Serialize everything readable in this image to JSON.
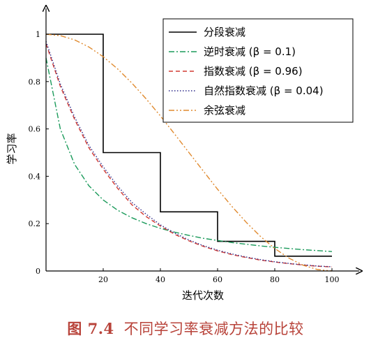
{
  "caption": {
    "prefix": "图 7.4",
    "text": "不同学习率衰减方法的比较"
  },
  "chart_data": {
    "type": "line",
    "xlabel": "迭代次数",
    "ylabel": "学习率",
    "xlim": [
      0,
      100
    ],
    "ylim": [
      0,
      1.1
    ],
    "x_ticks": [
      20,
      40,
      60,
      80,
      100
    ],
    "y_ticks": [
      0,
      0.2,
      0.4,
      0.6,
      0.8,
      1
    ],
    "x_tick_labels": [
      "20",
      "40",
      "60",
      "80",
      "100"
    ],
    "y_tick_labels": [
      "0",
      "0.2",
      "0.4",
      "0.6",
      "0.8",
      "1"
    ],
    "grid": false,
    "legend_position": "top-right",
    "series": [
      {
        "name": "分段衰减",
        "color": "#000000",
        "dash": "solid",
        "x": [
          0,
          20,
          20,
          40,
          40,
          60,
          60,
          80,
          80,
          100
        ],
        "y": [
          1,
          1,
          0.5,
          0.5,
          0.25,
          0.25,
          0.125,
          0.125,
          0.0625,
          0.0625
        ]
      },
      {
        "name": "逆时衰减 (β = 0.1)",
        "color": "#1a9a5a",
        "dash": "dashdot",
        "x": [
          0,
          5,
          10,
          15,
          20,
          25,
          30,
          35,
          40,
          45,
          50,
          55,
          60,
          65,
          70,
          75,
          80,
          85,
          90,
          95,
          100
        ],
        "y": [
          0.9,
          0.6,
          0.45,
          0.36,
          0.3,
          0.257,
          0.225,
          0.2,
          0.18,
          0.164,
          0.15,
          0.138,
          0.129,
          0.12,
          0.113,
          0.106,
          0.1,
          0.095,
          0.09,
          0.086,
          0.082
        ]
      },
      {
        "name": "指数衰减 (β = 0.96)",
        "color": "#d23a32",
        "dash": "dashed",
        "x": [
          0,
          5,
          10,
          15,
          20,
          25,
          30,
          35,
          40,
          45,
          50,
          55,
          60,
          65,
          70,
          75,
          80,
          85,
          90,
          95,
          100
        ],
        "y": [
          0.96,
          0.78,
          0.64,
          0.52,
          0.43,
          0.35,
          0.28,
          0.23,
          0.19,
          0.155,
          0.127,
          0.104,
          0.085,
          0.069,
          0.057,
          0.046,
          0.038,
          0.031,
          0.025,
          0.02,
          0.017
        ]
      },
      {
        "name": "自然指数衰减 (β = 0.04)",
        "color": "#2d2a8a",
        "dash": "dotted",
        "x": [
          0,
          5,
          10,
          15,
          20,
          25,
          30,
          35,
          40,
          45,
          50,
          55,
          60,
          65,
          70,
          75,
          80,
          85,
          90,
          95,
          100
        ],
        "y": [
          0.97,
          0.79,
          0.65,
          0.53,
          0.44,
          0.36,
          0.29,
          0.24,
          0.195,
          0.16,
          0.131,
          0.107,
          0.088,
          0.072,
          0.059,
          0.048,
          0.039,
          0.032,
          0.026,
          0.021,
          0.018
        ]
      },
      {
        "name": "余弦衰减",
        "color": "#e08a2e",
        "dash": "dashdotdot",
        "x": [
          0,
          5,
          10,
          15,
          20,
          25,
          30,
          35,
          40,
          45,
          50,
          55,
          60,
          65,
          70,
          75,
          80,
          85,
          90,
          95,
          100
        ],
        "y": [
          1,
          0.994,
          0.976,
          0.946,
          0.905,
          0.854,
          0.794,
          0.727,
          0.655,
          0.578,
          0.5,
          0.422,
          0.345,
          0.273,
          0.206,
          0.146,
          0.095,
          0.054,
          0.024,
          0.006,
          0
        ]
      }
    ]
  }
}
